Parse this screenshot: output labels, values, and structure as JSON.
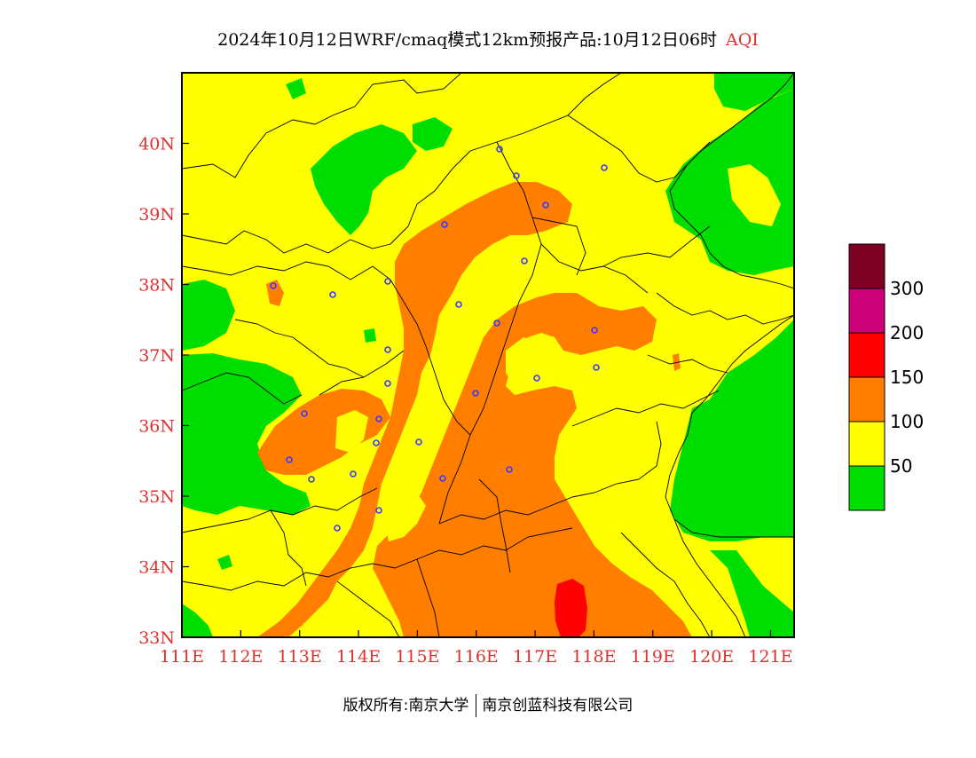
{
  "title": {
    "main": "2024年10月12日WRF/cmaq模式12km预报产品:10月12日06时",
    "variable": "AQI"
  },
  "map": {
    "lon_range": [
      111,
      121.4
    ],
    "lat_range": [
      33,
      41
    ],
    "lon_ticks": [
      "111E",
      "112E",
      "113E",
      "114E",
      "115E",
      "116E",
      "117E",
      "118E",
      "119E",
      "120E",
      "121E"
    ],
    "lat_ticks": [
      "33N",
      "34N",
      "35N",
      "36N",
      "37N",
      "38N",
      "39N",
      "40N"
    ],
    "tick_color": "#e03030"
  },
  "legend": {
    "labels": [
      "50",
      "100",
      "150",
      "200",
      "300"
    ],
    "colors": [
      "#00dd00",
      "#ffff00",
      "#ff7e00",
      "#ff0000",
      "#cc0077",
      "#7e0023"
    ]
  },
  "colors": {
    "good": "#00dd00",
    "moderate": "#ffff00",
    "sensitive": "#ff7e00",
    "unhealthy": "#ff0000",
    "city_marker": "#3a3aff"
  },
  "footer": {
    "copyright": "版权所有:南京大学",
    "company": "南京创蓝科技有限公司"
  }
}
